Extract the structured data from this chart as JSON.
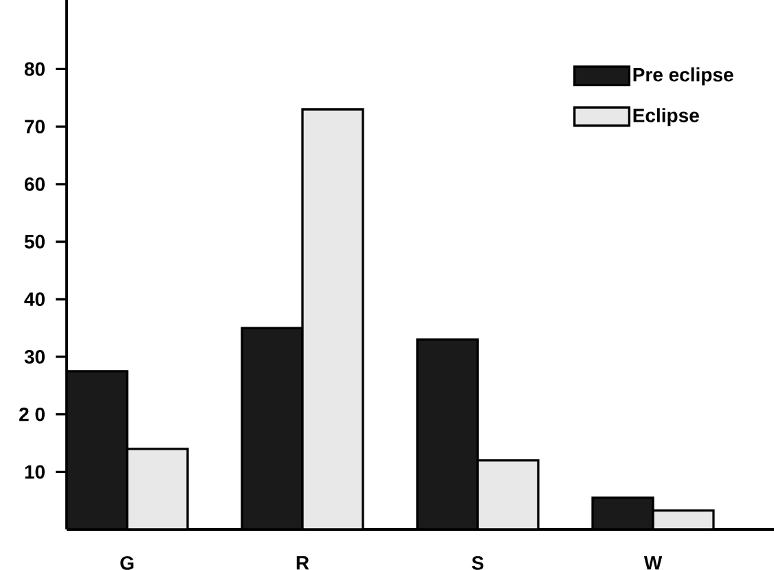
{
  "chart_data": {
    "type": "bar",
    "categories": [
      "G",
      "R",
      "S",
      "W"
    ],
    "series": [
      {
        "name": "Pre eclipse",
        "color": "#1a1a1a",
        "values": [
          27.5,
          35,
          33,
          5.5
        ]
      },
      {
        "name": "Eclipse",
        "color": "#e8e8e8",
        "values": [
          14,
          73,
          12,
          3.3
        ]
      }
    ],
    "ylim": [
      0,
      92
    ],
    "yticks": [
      10,
      {
        "value": 20,
        "label": "2 0"
      },
      30,
      40,
      50,
      60,
      70,
      80
    ],
    "legend": "top right",
    "grid": false
  }
}
